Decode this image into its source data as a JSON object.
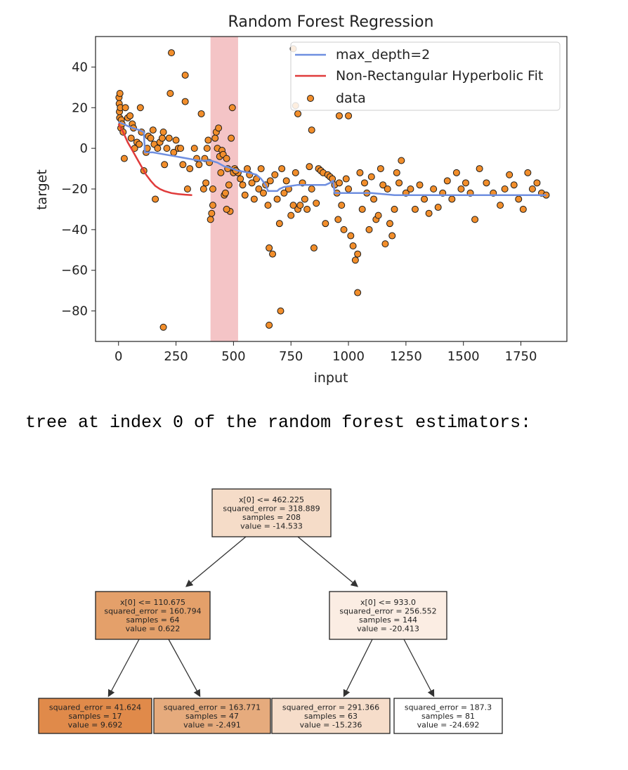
{
  "chart_data": {
    "type": "line",
    "title": "Random Forest Regression",
    "xlabel": "input",
    "ylabel": "target",
    "xlim": [
      -100,
      1950
    ],
    "ylim": [
      -95,
      55
    ],
    "xticks": [
      0,
      250,
      500,
      750,
      1000,
      1250,
      1500,
      1750
    ],
    "yticks": [
      40,
      20,
      0,
      -20,
      -40,
      -60,
      -80
    ],
    "xtick_labels": [
      "0",
      "250",
      "500",
      "750",
      "1000",
      "1250",
      "1500",
      "1750"
    ],
    "ytick_labels": [
      "40",
      "20",
      "0",
      "−20",
      "−40",
      "−60",
      "−80"
    ],
    "highlight_span": {
      "x_from": 400,
      "x_to": 520,
      "color": "#f4c4c6"
    },
    "legend_position": "upper right",
    "series": [
      {
        "name": "max_depth=2",
        "kind": "line",
        "color": "#6f8fe0",
        "x": [
          0,
          20,
          40,
          60,
          90,
          110,
          115,
          150,
          200,
          250,
          300,
          350,
          400,
          430,
          462,
          470,
          520,
          570,
          600,
          620,
          640,
          650,
          690,
          700,
          720,
          780,
          850,
          900,
          920,
          933,
          940,
          960,
          1000,
          1100,
          1200,
          1300,
          1400,
          1500,
          1600,
          1700,
          1800,
          1860
        ],
        "y": [
          13,
          12,
          11,
          10,
          9,
          8,
          -2,
          -2,
          -3,
          -4,
          -5,
          -6,
          -6,
          -7,
          -9,
          -9,
          -11,
          -12,
          -13,
          -15,
          -18,
          -21,
          -21,
          -20,
          -19,
          -18,
          -18,
          -18,
          -17,
          -16,
          -22,
          -22,
          -22,
          -22,
          -23,
          -23,
          -23,
          -23,
          -23,
          -23,
          -23,
          -23
        ]
      },
      {
        "name": "Non-Rectangular Hyperbolic Fit",
        "kind": "line",
        "color": "#e03b3b",
        "x": [
          0,
          20,
          40,
          60,
          80,
          100,
          120,
          140,
          160,
          180,
          200,
          230,
          260,
          290,
          320
        ],
        "y": [
          12,
          8,
          3,
          -1,
          -5,
          -9,
          -13,
          -16,
          -18.5,
          -20,
          -21,
          -22,
          -22.5,
          -22.8,
          -23
        ]
      },
      {
        "name": "data",
        "kind": "scatter",
        "color": "#f28e2b",
        "edge_color": "#1a1a1a",
        "x": [
          2,
          3,
          4,
          5,
          6,
          8,
          10,
          12,
          15,
          20,
          25,
          30,
          40,
          50,
          55,
          60,
          65,
          70,
          80,
          90,
          95,
          100,
          110,
          120,
          125,
          130,
          140,
          150,
          155,
          160,
          170,
          180,
          190,
          195,
          200,
          210,
          220,
          230,
          240,
          250,
          260,
          270,
          280,
          290,
          300,
          310,
          330,
          340,
          350,
          360,
          370,
          375,
          380,
          385,
          390,
          395,
          400,
          405,
          410,
          420,
          425,
          430,
          435,
          440,
          445,
          450,
          455,
          460,
          465,
          470,
          475,
          480,
          485,
          490,
          495,
          500,
          505,
          510,
          520,
          530,
          540,
          550,
          560,
          570,
          580,
          590,
          600,
          610,
          620,
          630,
          640,
          650,
          655,
          660,
          670,
          680,
          690,
          700,
          710,
          720,
          730,
          740,
          750,
          760,
          770,
          780,
          790,
          800,
          810,
          820,
          830,
          840,
          850,
          860,
          870,
          880,
          890,
          900,
          910,
          920,
          930,
          940,
          950,
          955,
          960,
          970,
          980,
          990,
          1000,
          1010,
          1020,
          1030,
          1040,
          1050,
          1060,
          1070,
          1080,
          1090,
          1100,
          1110,
          1120,
          1130,
          1140,
          1150,
          1160,
          1170,
          1180,
          1190,
          1200,
          1210,
          1220,
          1230,
          1250,
          1270,
          1290,
          1310,
          1330,
          1350,
          1370,
          1390,
          1410,
          1430,
          1450,
          1470,
          1490,
          1510,
          1530,
          1550,
          1570,
          1600,
          1630,
          1660,
          1680,
          1700,
          1720,
          1740,
          1760,
          1780,
          1800,
          1820,
          1840,
          1860,
          195,
          225,
          290,
          1040,
          655,
          705,
          760,
          770,
          840,
          960,
          1000,
          780,
          510,
          470,
          410
        ],
        "y": [
          25,
          22,
          18,
          15,
          27,
          20,
          10,
          14,
          12,
          8,
          -5,
          20,
          15,
          16,
          5,
          12,
          10,
          0,
          3,
          2,
          20,
          8,
          -11,
          -2,
          0,
          6,
          5,
          9,
          2,
          -25,
          0,
          3,
          5,
          8,
          -8,
          0,
          5,
          47,
          -2,
          4,
          0,
          0,
          -8,
          36,
          -20,
          -10,
          0,
          -5,
          -8,
          17,
          -20,
          -5,
          -17,
          0,
          4,
          -7,
          -35,
          -32,
          -28,
          5,
          8,
          0,
          10,
          -4,
          -12,
          -1,
          -3,
          -23,
          -22,
          -5,
          -10,
          -18,
          -31,
          5,
          20,
          -12,
          -10,
          -11,
          -12,
          -15,
          -18,
          -23,
          -10,
          -13,
          -17,
          -25,
          -15,
          -20,
          -10,
          -22,
          -18,
          -28,
          -49,
          -16,
          -52,
          -13,
          -25,
          -37,
          -10,
          -22,
          -16,
          -20,
          -33,
          -28,
          -12,
          -30,
          -28,
          -17,
          -25,
          -30,
          -9,
          -20,
          -49,
          -27,
          -10,
          -11,
          -12,
          -37,
          -13,
          -14,
          -15,
          -18,
          -22,
          -35,
          -17,
          -28,
          -40,
          -15,
          -20,
          -43,
          -48,
          -55,
          -52,
          -12,
          -30,
          -17,
          -22,
          -40,
          -14,
          -25,
          -35,
          -33,
          -10,
          -18,
          -47,
          -20,
          -37,
          -43,
          -30,
          -12,
          -17,
          -6,
          -22,
          -20,
          -30,
          -18,
          -25,
          -32,
          -20,
          -29,
          -22,
          -16,
          -25,
          -12,
          -20,
          -17,
          -22,
          -35,
          -10,
          -17,
          -22,
          -28,
          -20,
          -13,
          -18,
          -25,
          -30,
          -12,
          -20,
          -17,
          -22,
          -23,
          -88,
          27,
          23,
          -71,
          -87,
          -80,
          49,
          21,
          9,
          16,
          16,
          17,
          -11,
          -30,
          -20
        ]
      }
    ]
  },
  "caption": "tree at index 0 of the random forest estimators:",
  "tree": {
    "nodes": [
      {
        "id": "root",
        "lines": [
          "x[0] <= 462.225",
          "squared_error = 318.889",
          "samples = 208",
          "value = -14.533"
        ],
        "fill": "#f5dcc8"
      },
      {
        "id": "left",
        "lines": [
          "x[0] <= 110.675",
          "squared_error = 160.794",
          "samples = 64",
          "value = 0.622"
        ],
        "fill": "#e4a06a"
      },
      {
        "id": "right",
        "lines": [
          "x[0] <= 933.0",
          "squared_error = 256.552",
          "samples = 144",
          "value = -20.413"
        ],
        "fill": "#fbede3"
      },
      {
        "id": "ll",
        "lines": [
          "squared_error = 41.624",
          "samples = 17",
          "value = 9.692"
        ],
        "fill": "#e08a4a"
      },
      {
        "id": "lr",
        "lines": [
          "squared_error = 163.771",
          "samples = 47",
          "value = -2.491"
        ],
        "fill": "#e6ab7d"
      },
      {
        "id": "rl",
        "lines": [
          "squared_error = 291.366",
          "samples = 63",
          "value = -15.236"
        ],
        "fill": "#f6ddca"
      },
      {
        "id": "rr",
        "lines": [
          "squared_error = 187.3",
          "samples = 81",
          "value = -24.692"
        ],
        "fill": "#ffffff"
      }
    ]
  }
}
